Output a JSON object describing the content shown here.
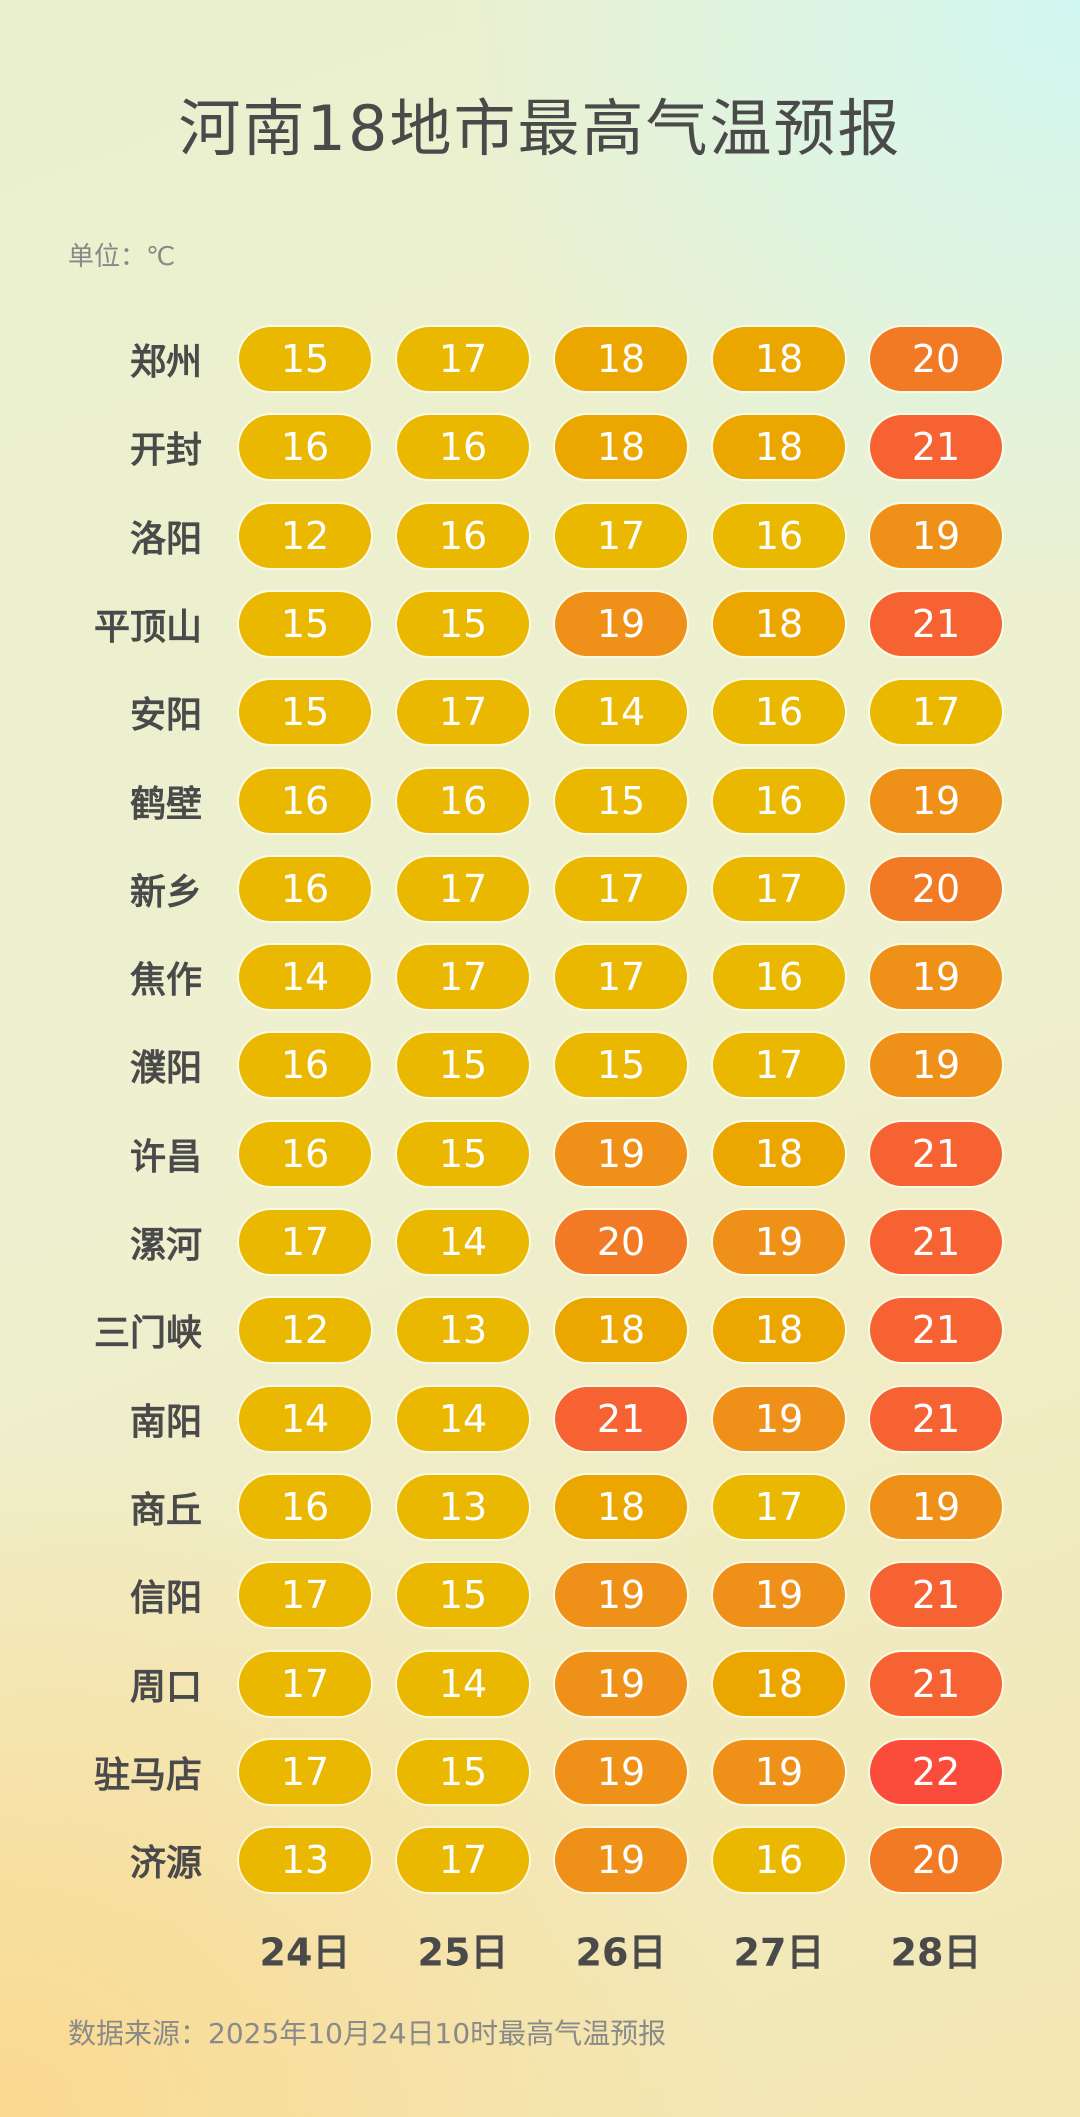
{
  "chart_data": {
    "type": "table",
    "title": "河南18地市最高气温预报",
    "unit_label": "单位：℃",
    "columns": [
      "24日",
      "25日",
      "26日",
      "27日",
      "28日"
    ],
    "rows": [
      {
        "city": "郑州",
        "values": [
          15,
          17,
          18,
          18,
          20
        ]
      },
      {
        "city": "开封",
        "values": [
          16,
          16,
          18,
          18,
          21
        ]
      },
      {
        "city": "洛阳",
        "values": [
          12,
          16,
          17,
          16,
          19
        ]
      },
      {
        "city": "平顶山",
        "values": [
          15,
          15,
          19,
          18,
          21
        ]
      },
      {
        "city": "安阳",
        "values": [
          15,
          17,
          14,
          16,
          17
        ]
      },
      {
        "city": "鹤壁",
        "values": [
          16,
          16,
          15,
          16,
          19
        ]
      },
      {
        "city": "新乡",
        "values": [
          16,
          17,
          17,
          17,
          20
        ]
      },
      {
        "city": "焦作",
        "values": [
          14,
          17,
          17,
          16,
          19
        ]
      },
      {
        "city": "濮阳",
        "values": [
          16,
          15,
          15,
          17,
          19
        ]
      },
      {
        "city": "许昌",
        "values": [
          16,
          15,
          19,
          18,
          21
        ]
      },
      {
        "city": "漯河",
        "values": [
          17,
          14,
          20,
          19,
          21
        ]
      },
      {
        "city": "三门峡",
        "values": [
          12,
          13,
          18,
          18,
          21
        ]
      },
      {
        "city": "南阳",
        "values": [
          14,
          14,
          21,
          19,
          21
        ]
      },
      {
        "city": "商丘",
        "values": [
          16,
          13,
          18,
          17,
          19
        ]
      },
      {
        "city": "信阳",
        "values": [
          17,
          15,
          19,
          19,
          21
        ]
      },
      {
        "city": "周口",
        "values": [
          17,
          14,
          19,
          18,
          21
        ]
      },
      {
        "city": "驻马店",
        "values": [
          17,
          15,
          19,
          19,
          22
        ]
      },
      {
        "city": "济源",
        "values": [
          13,
          17,
          19,
          16,
          20
        ]
      }
    ],
    "color_scale": {
      "17": "#eab800",
      "18": "#eba600",
      "19": "#ef9119",
      "20": "#f37a24",
      "21": "#f76232",
      "22": "#fa4b3b"
    },
    "source": "数据来源：2025年10月24日10时最高气温预报"
  }
}
